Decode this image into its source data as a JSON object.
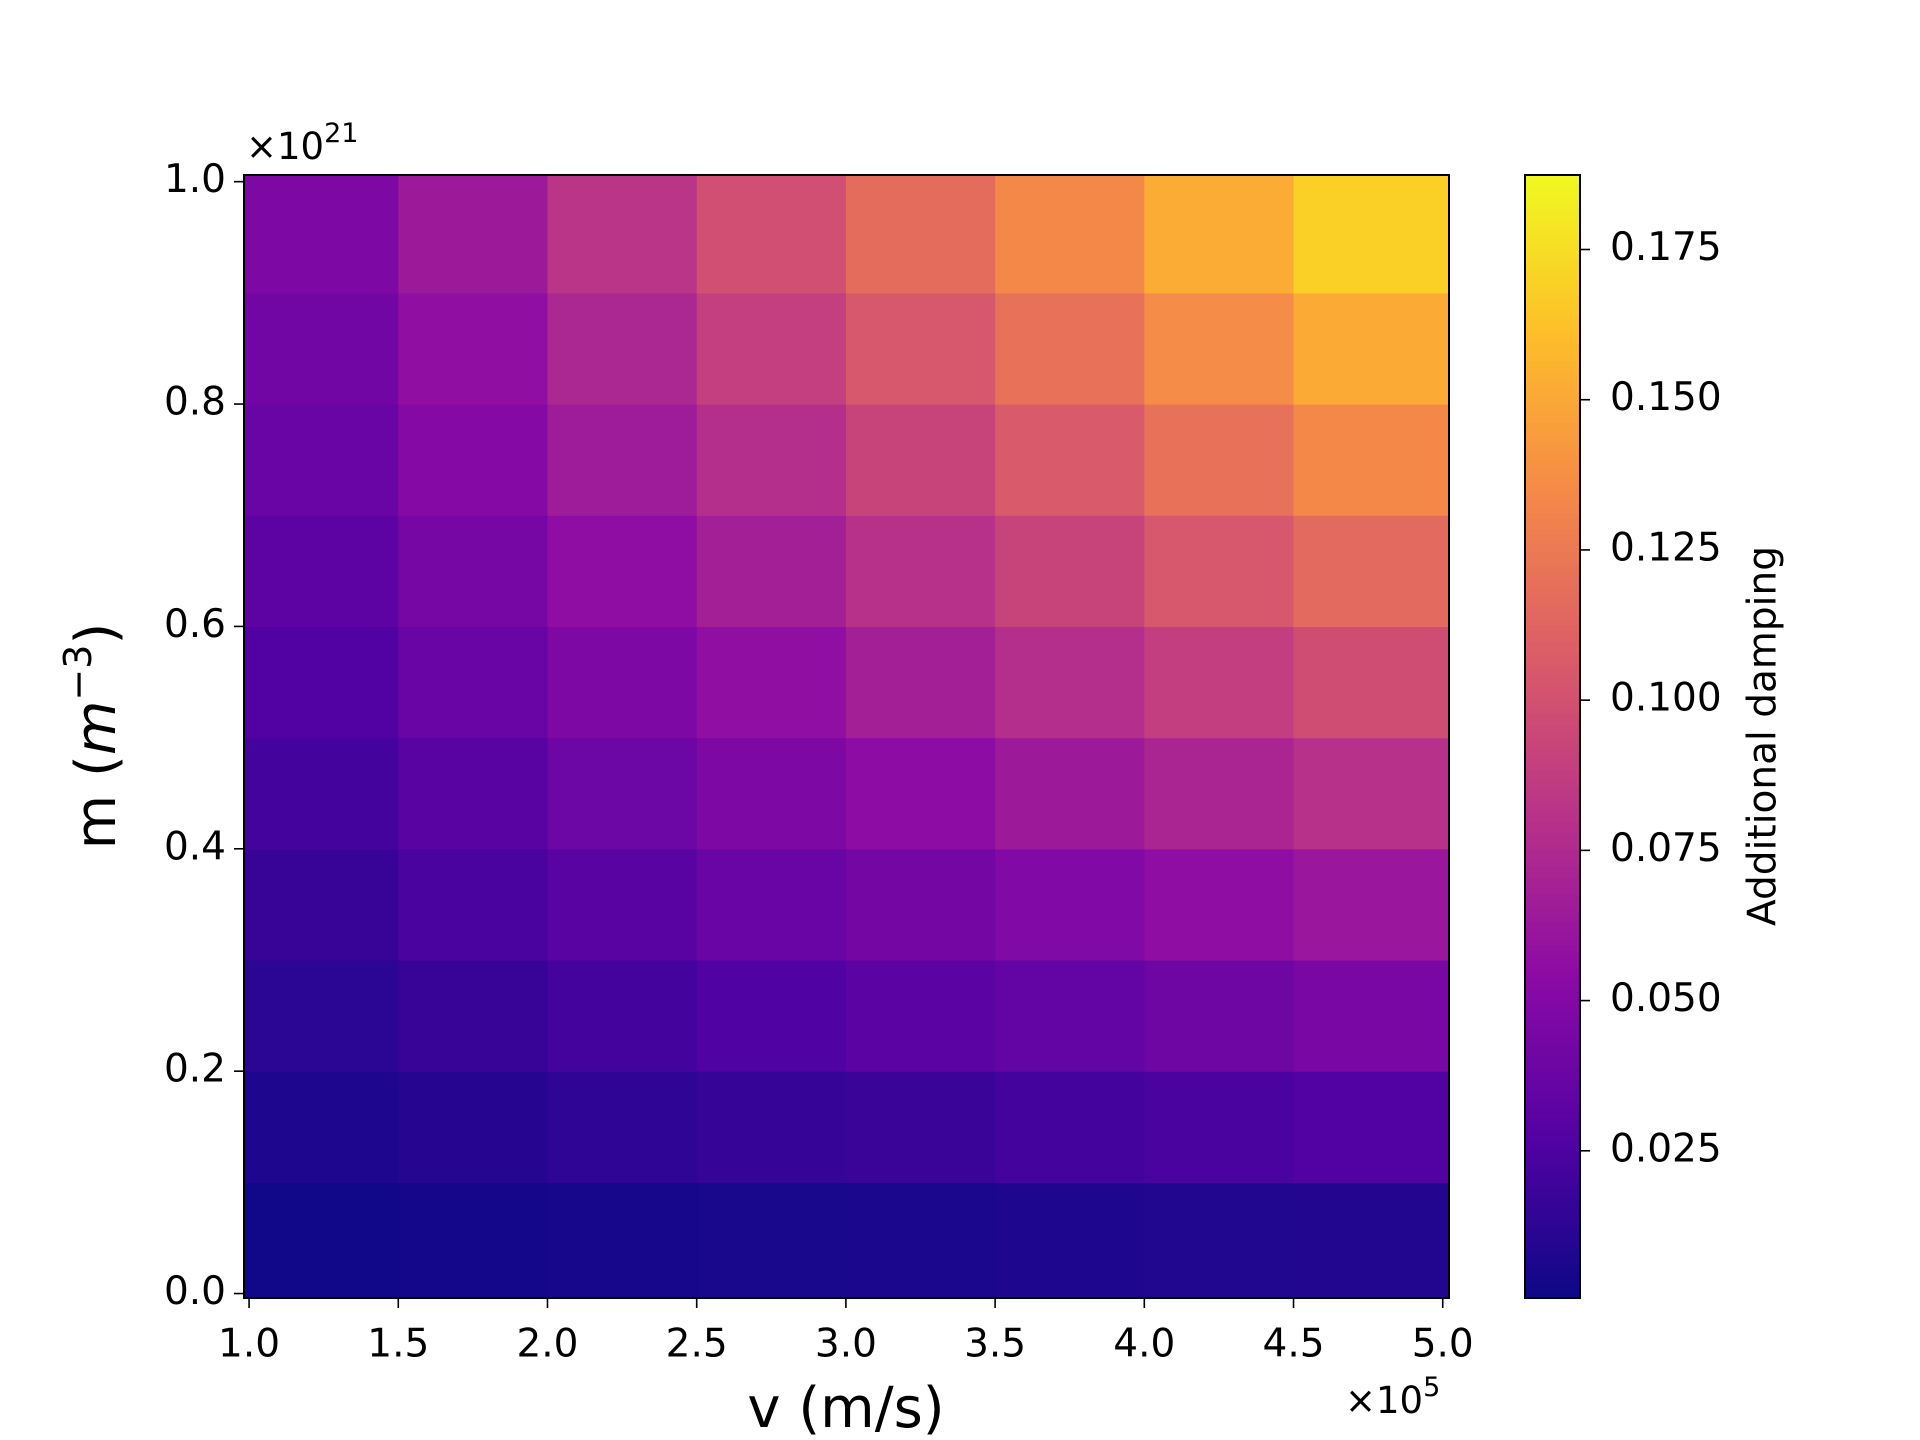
{
  "chart_data": {
    "type": "heatmap",
    "xlabel": "v (m/s)",
    "ylabel": {
      "text": "m (",
      "italic": "m",
      "superscript": "−3",
      "close": ")"
    },
    "x_offset": {
      "base": "×10",
      "exponent": "5"
    },
    "y_offset": {
      "base": "×10",
      "exponent": "21"
    },
    "colorbar_label": "Additional damping",
    "colormap": [
      "#0d0887",
      "#5302a3",
      "#8b0aa5",
      "#b83289",
      "#db5c68",
      "#f48849",
      "#febd2a",
      "#f0f921"
    ],
    "xlim": [
      0.983,
      5.021
    ],
    "ylim": [
      -0.004,
      1.006
    ],
    "clim": [
      0.0005,
      0.1874
    ],
    "xbins": [
      0.983,
      1.5,
      2.0,
      2.5,
      3.0,
      3.5,
      4.0,
      4.5,
      5.021
    ],
    "ybins": [
      -0.004,
      0.1,
      0.2,
      0.3,
      0.4,
      0.5,
      0.6,
      0.7,
      0.8,
      0.9,
      1.006
    ],
    "xticks": [
      {
        "value": 1,
        "label": "1.0"
      },
      1.5,
      {
        "value": 2,
        "label": "2.0"
      },
      2.5,
      {
        "value": 3,
        "label": "3.0"
      },
      3.5,
      {
        "value": 4,
        "label": "4.0"
      },
      4.5,
      {
        "value": 5,
        "label": "5.0"
      }
    ],
    "yticks": [
      {
        "value": 0,
        "label": "0.0"
      },
      0.2,
      0.4,
      0.6,
      0.8,
      {
        "value": 1,
        "label": "1.0"
      }
    ],
    "cticks": [
      0.025,
      {
        "value": 0.05,
        "label": "0.050"
      },
      0.075,
      {
        "value": 0.1,
        "label": "0.100"
      },
      0.125,
      {
        "value": 0.15,
        "label": "0.150"
      },
      0.175
    ],
    "z": [
      [
        0.002,
        0.003,
        0.004,
        0.005,
        0.006,
        0.007,
        0.008,
        0.009
      ],
      [
        0.007,
        0.01,
        0.013,
        0.016,
        0.018,
        0.021,
        0.024,
        0.027
      ],
      [
        0.012,
        0.017,
        0.022,
        0.026,
        0.031,
        0.035,
        0.04,
        0.045
      ],
      [
        0.017,
        0.024,
        0.03,
        0.037,
        0.043,
        0.049,
        0.056,
        0.062
      ],
      [
        0.022,
        0.03,
        0.039,
        0.047,
        0.055,
        0.064,
        0.072,
        0.08
      ],
      [
        0.027,
        0.037,
        0.047,
        0.057,
        0.068,
        0.078,
        0.088,
        0.098
      ],
      [
        0.032,
        0.044,
        0.056,
        0.068,
        0.08,
        0.092,
        0.104,
        0.116
      ],
      [
        0.037,
        0.051,
        0.065,
        0.078,
        0.092,
        0.106,
        0.12,
        0.134
      ],
      [
        0.042,
        0.057,
        0.073,
        0.089,
        0.104,
        0.12,
        0.136,
        0.151
      ],
      [
        0.047,
        0.064,
        0.082,
        0.099,
        0.117,
        0.134,
        0.152,
        0.169
      ]
    ]
  }
}
